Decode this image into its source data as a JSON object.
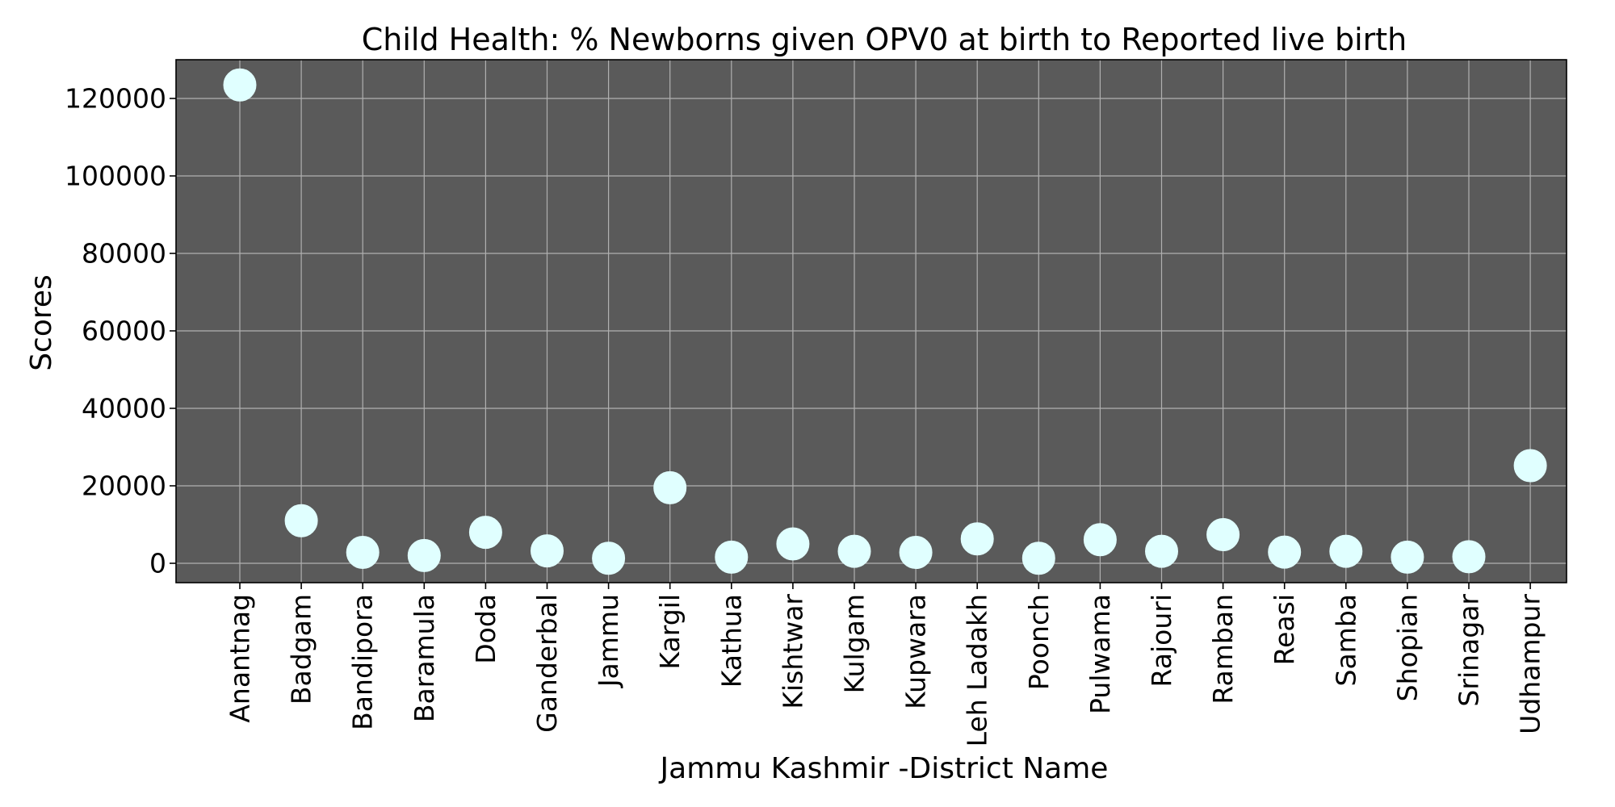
{
  "chart_data": {
    "type": "scatter",
    "title": "Child Health: % Newborns given OPV0 at birth to Reported live birth",
    "xlabel": "Jammu Kashmir -District Name",
    "ylabel": "Scores",
    "categories": [
      "Anantnag",
      "Badgam",
      "Bandipora",
      "Baramula",
      "Doda",
      "Ganderbal",
      "Jammu",
      "Kargil",
      "Kathua",
      "Kishtwar",
      "Kulgam",
      "Kupwara",
      "Leh Ladakh",
      "Poonch",
      "Pulwama",
      "Rajouri",
      "Ramban",
      "Reasi",
      "Samba",
      "Shopian",
      "Srinagar",
      "Udhampur"
    ],
    "values": [
      123500,
      11000,
      2800,
      2000,
      8000,
      3200,
      1300,
      19500,
      1600,
      5000,
      3100,
      2800,
      6300,
      1300,
      6100,
      3100,
      7400,
      2900,
      3100,
      1600,
      1700,
      25200
    ],
    "ylim": [
      -5000,
      130000
    ],
    "yticks": [
      0,
      20000,
      40000,
      60000,
      80000,
      100000,
      120000
    ],
    "grid": true,
    "colors": {
      "plot_background": "#5a5a5a",
      "marker": "#e0ffff",
      "grid": "#b0b0b0"
    }
  }
}
